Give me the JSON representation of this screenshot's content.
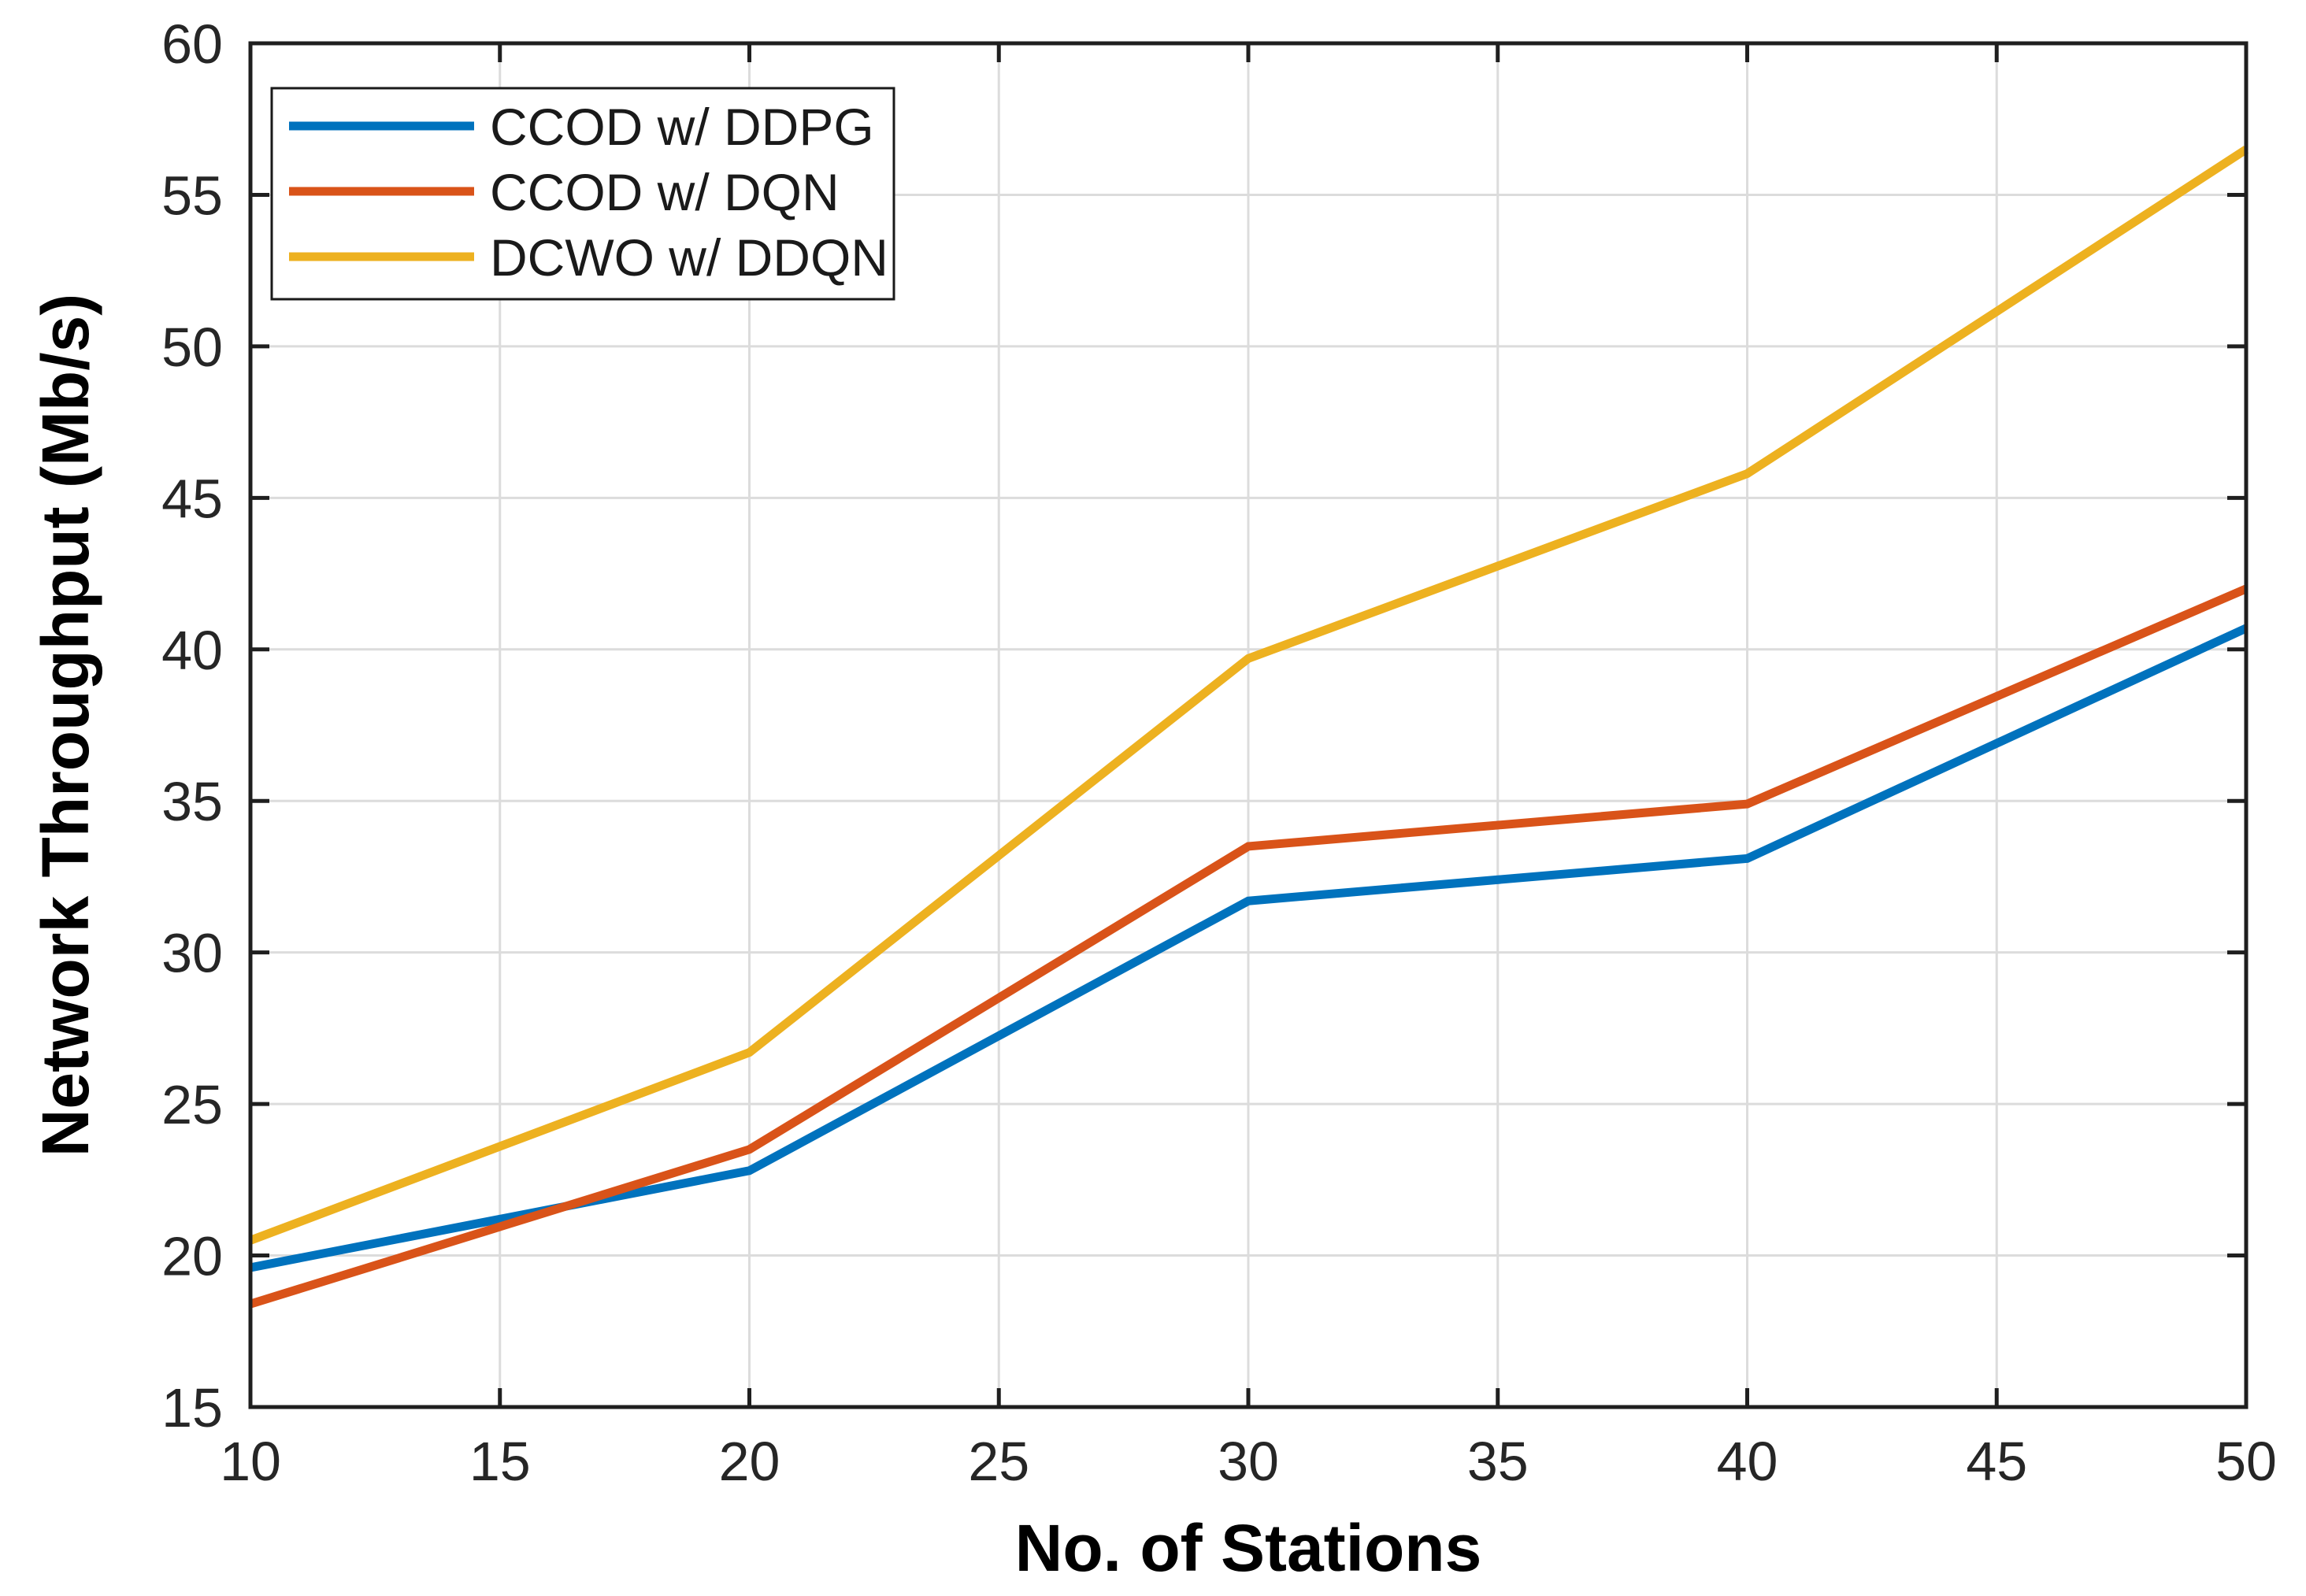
{
  "figure": {
    "background": "#ffffff"
  },
  "chart_data": {
    "type": "line",
    "title": "",
    "xlabel": "No. of Stations",
    "ylabel": "Network Throughput (Mb/s)",
    "x": [
      10,
      20,
      30,
      40,
      50
    ],
    "series": [
      {
        "name": "CCOD w/ DDPG",
        "color": "#0072BD",
        "values": [
          19.6,
          22.8,
          31.7,
          33.1,
          40.7
        ]
      },
      {
        "name": "CCOD w/ DQN",
        "color": "#D95319",
        "values": [
          18.4,
          23.5,
          33.5,
          34.9,
          42.0
        ]
      },
      {
        "name": "DCWO w/ DDQN",
        "color": "#EDB120",
        "values": [
          20.5,
          26.7,
          39.7,
          45.8,
          56.5
        ]
      }
    ],
    "xlim": [
      10,
      50
    ],
    "ylim": [
      15,
      60
    ],
    "xticks": [
      10,
      15,
      20,
      25,
      30,
      35,
      40,
      45,
      50
    ],
    "yticks": [
      15,
      20,
      25,
      30,
      35,
      40,
      45,
      50,
      55,
      60
    ],
    "grid": true,
    "legend_position": "top-left"
  },
  "colors": {
    "grid": "#DCDCDC",
    "axis": "#1f1f1f",
    "tick_label": "#262626",
    "legend_border": "#1a1a1a",
    "legend_background": "#ffffff"
  }
}
